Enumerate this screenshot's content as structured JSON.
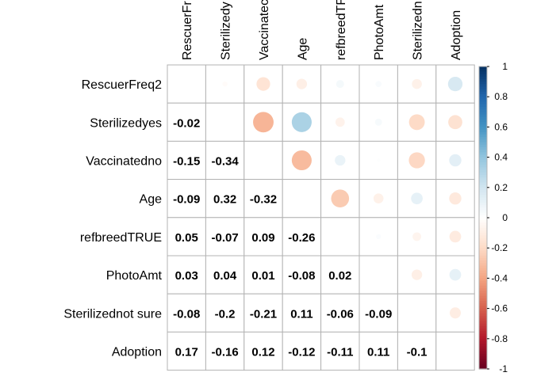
{
  "chart_data": {
    "type": "heatmap",
    "variables": [
      "RescuerFreq2",
      "Sterilizedyes",
      "Vaccinatedno",
      "Age",
      "refbreedTRUE",
      "PhotoAmt",
      "Sterilizednot sure",
      "Adoption"
    ],
    "column_labels_visible": [
      "RescuerFr",
      "Sterilizedy",
      "Vaccinatec",
      "Age",
      "refbreedTF",
      "PhotoAmt",
      "Sterilizedn",
      "Adoption"
    ],
    "matrix": [
      [
        1.0,
        -0.02,
        -0.15,
        -0.09,
        0.05,
        0.03,
        -0.08,
        0.17
      ],
      [
        -0.02,
        1.0,
        -0.34,
        0.32,
        -0.07,
        0.04,
        -0.2,
        -0.16
      ],
      [
        -0.15,
        -0.34,
        1.0,
        -0.32,
        0.09,
        0.01,
        -0.21,
        0.12
      ],
      [
        -0.09,
        0.32,
        -0.32,
        1.0,
        -0.26,
        -0.08,
        0.11,
        -0.12
      ],
      [
        0.05,
        -0.07,
        0.09,
        -0.26,
        1.0,
        0.02,
        -0.06,
        -0.11
      ],
      [
        0.03,
        0.04,
        0.01,
        -0.08,
        0.02,
        1.0,
        -0.09,
        0.11
      ],
      [
        -0.08,
        -0.2,
        -0.21,
        0.11,
        -0.06,
        -0.09,
        1.0,
        -0.1
      ],
      [
        0.17,
        -0.16,
        0.12,
        -0.12,
        -0.11,
        0.11,
        -0.1,
        1.0
      ]
    ],
    "lower_labels": [
      [
        "",
        "",
        "",
        "",
        "",
        "",
        "",
        ""
      ],
      [
        "-0.02",
        "",
        "",
        "",
        "",
        "",
        "",
        ""
      ],
      [
        "-0.15",
        "-0.34",
        "",
        "",
        "",
        "",
        "",
        ""
      ],
      [
        "-0.09",
        "0.32",
        "-0.32",
        "",
        "",
        "",
        "",
        ""
      ],
      [
        "0.05",
        "-0.07",
        "0.09",
        "-0.26",
        "",
        "",
        "",
        ""
      ],
      [
        "0.03",
        "0.04",
        "0.01",
        "-0.08",
        "0.02",
        "",
        "",
        ""
      ],
      [
        "-0.08",
        "-0.2",
        "-0.21",
        "0.11",
        "-0.06",
        "-0.09",
        "",
        ""
      ],
      [
        "0.17",
        "-0.16",
        "0.12",
        "-0.12",
        "-0.11",
        "0.11",
        "-0.1",
        ""
      ]
    ],
    "upper_glyph": "circle",
    "lower_glyph": "number",
    "diagonal": "blank",
    "color_range": [
      -1,
      1
    ],
    "legend_ticks": [
      "1",
      "0.8",
      "0.6",
      "0.4",
      "0.2",
      "0",
      "-0.2",
      "-0.4",
      "-0.6",
      "-0.8",
      "-1"
    ],
    "colorscale": [
      "#67001F",
      "#B2182B",
      "#D6604D",
      "#F4A582",
      "#FDDBC7",
      "#FFFFFF",
      "#D1E5F0",
      "#92C5DE",
      "#4393C3",
      "#2166AC",
      "#053061"
    ],
    "legend_placement": "right",
    "grid": true
  }
}
